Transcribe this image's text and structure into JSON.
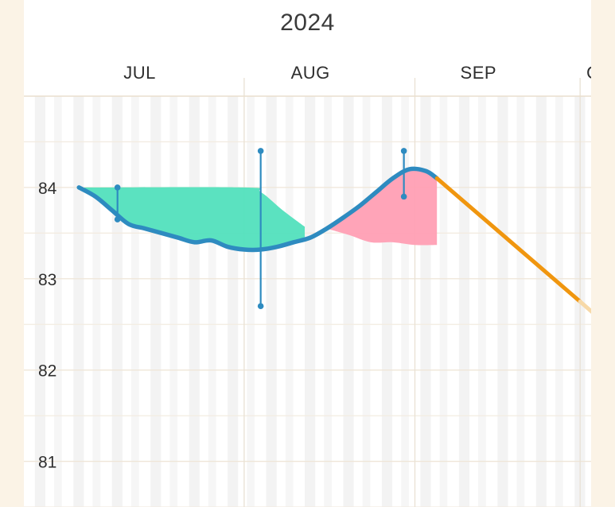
{
  "header": {
    "year": "2024"
  },
  "chart_data": {
    "type": "line",
    "title": "",
    "xlabel": "",
    "ylabel": "",
    "x_axis_labels": [
      "JUL",
      "AUG",
      "SEP",
      "O"
    ],
    "y_ticks": [
      "81",
      "82",
      "83",
      "84"
    ],
    "ylim": [
      80.5,
      85.0
    ],
    "xlim": [
      "2024-06-22",
      "2024-10-03"
    ],
    "grid": true,
    "series": [
      {
        "role": "actual",
        "color": "#2e8bc0",
        "points": [
          {
            "x": "2024-07-02",
            "y": 84.0
          },
          {
            "x": "2024-07-05",
            "y": 83.9
          },
          {
            "x": "2024-07-08",
            "y": 83.75
          },
          {
            "x": "2024-07-11",
            "y": 83.6
          },
          {
            "x": "2024-07-14",
            "y": 83.55
          },
          {
            "x": "2024-07-17",
            "y": 83.5
          },
          {
            "x": "2024-07-20",
            "y": 83.45
          },
          {
            "x": "2024-07-23",
            "y": 83.4
          },
          {
            "x": "2024-07-26",
            "y": 83.42
          },
          {
            "x": "2024-07-29",
            "y": 83.35
          },
          {
            "x": "2024-08-01",
            "y": 83.32
          },
          {
            "x": "2024-08-04",
            "y": 83.32
          },
          {
            "x": "2024-08-07",
            "y": 83.35
          },
          {
            "x": "2024-08-10",
            "y": 83.4
          },
          {
            "x": "2024-08-13",
            "y": 83.45
          },
          {
            "x": "2024-08-16",
            "y": 83.55
          },
          {
            "x": "2024-08-19",
            "y": 83.67
          },
          {
            "x": "2024-08-22",
            "y": 83.8
          },
          {
            "x": "2024-08-25",
            "y": 83.95
          },
          {
            "x": "2024-08-28",
            "y": 84.1
          },
          {
            "x": "2024-08-31",
            "y": 84.2
          },
          {
            "x": "2024-09-03",
            "y": 84.18
          },
          {
            "x": "2024-09-05",
            "y": 84.1
          }
        ]
      },
      {
        "role": "projection",
        "color": "#f0960f",
        "points": [
          {
            "x": "2024-09-05",
            "y": 84.1
          },
          {
            "x": "2024-10-01",
            "y": 82.75
          }
        ]
      }
    ],
    "bands": [
      {
        "color": "#52e0bd",
        "upper": [
          {
            "x": "2024-07-03",
            "y": 84.0
          },
          {
            "x": "2024-08-01",
            "y": 84.0
          },
          {
            "x": "2024-08-04",
            "y": 83.95
          },
          {
            "x": "2024-08-08",
            "y": 83.75
          },
          {
            "x": "2024-08-12",
            "y": 83.57
          }
        ],
        "lower_follows_series": "actual"
      },
      {
        "color": "#ff9fb4",
        "upper_follows_series": "actual",
        "lower": [
          {
            "x": "2024-08-16",
            "y": 83.55
          },
          {
            "x": "2024-08-20",
            "y": 83.48
          },
          {
            "x": "2024-08-24",
            "y": 83.4
          },
          {
            "x": "2024-08-28",
            "y": 83.4
          },
          {
            "x": "2024-09-01",
            "y": 83.37
          },
          {
            "x": "2024-09-05",
            "y": 83.37
          }
        ]
      }
    ],
    "error_bars": [
      {
        "x": "2024-07-09",
        "y_low": 83.65,
        "y_high": 84.0
      },
      {
        "x": "2024-08-04",
        "y_low": 82.7,
        "y_high": 84.4
      },
      {
        "x": "2024-08-30",
        "y_low": 83.9,
        "y_high": 84.4
      }
    ]
  }
}
